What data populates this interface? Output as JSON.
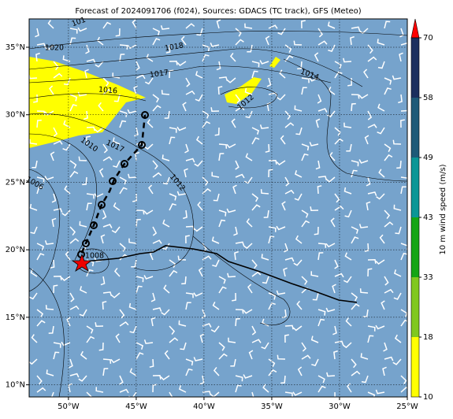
{
  "title": "Forecast of 2024091706 (f024), Sources: GDACS (TC track), GFS (Meteo)",
  "map": {
    "xlim": [
      -52.9,
      -25
    ],
    "ylim": [
      9.1,
      37.1
    ],
    "xticks": [
      {
        "value": -50,
        "label": "50°W"
      },
      {
        "value": -45,
        "label": "45°W"
      },
      {
        "value": -40,
        "label": "40°W"
      },
      {
        "value": -35,
        "label": "35°W"
      },
      {
        "value": -30,
        "label": "30°W"
      },
      {
        "value": -25,
        "label": "25°W"
      }
    ],
    "yticks": [
      {
        "value": 10,
        "label": "10°N"
      },
      {
        "value": 15,
        "label": "15°N"
      },
      {
        "value": 20,
        "label": "20°N"
      },
      {
        "value": 25,
        "label": "25°N"
      },
      {
        "value": 30,
        "label": "30°N"
      },
      {
        "value": 35,
        "label": "35°N"
      }
    ],
    "grid": true,
    "background": "#76a3cc",
    "contour_labels": [
      "101",
      "1020",
      "1018",
      "1017",
      "1016",
      "1014",
      "1012",
      "1010",
      "1017",
      "1006",
      "1012",
      "1008"
    ]
  },
  "colorbar": {
    "label": "10 m wind speed (m/s)",
    "ticks": [
      10,
      18,
      33,
      43,
      49,
      58,
      70
    ],
    "colors": [
      "#ffff00",
      "#80c81e",
      "#14a514",
      "#0a9696",
      "#1e5a78",
      "#1c2f5e"
    ],
    "extend_color": "#ff0000"
  }
}
